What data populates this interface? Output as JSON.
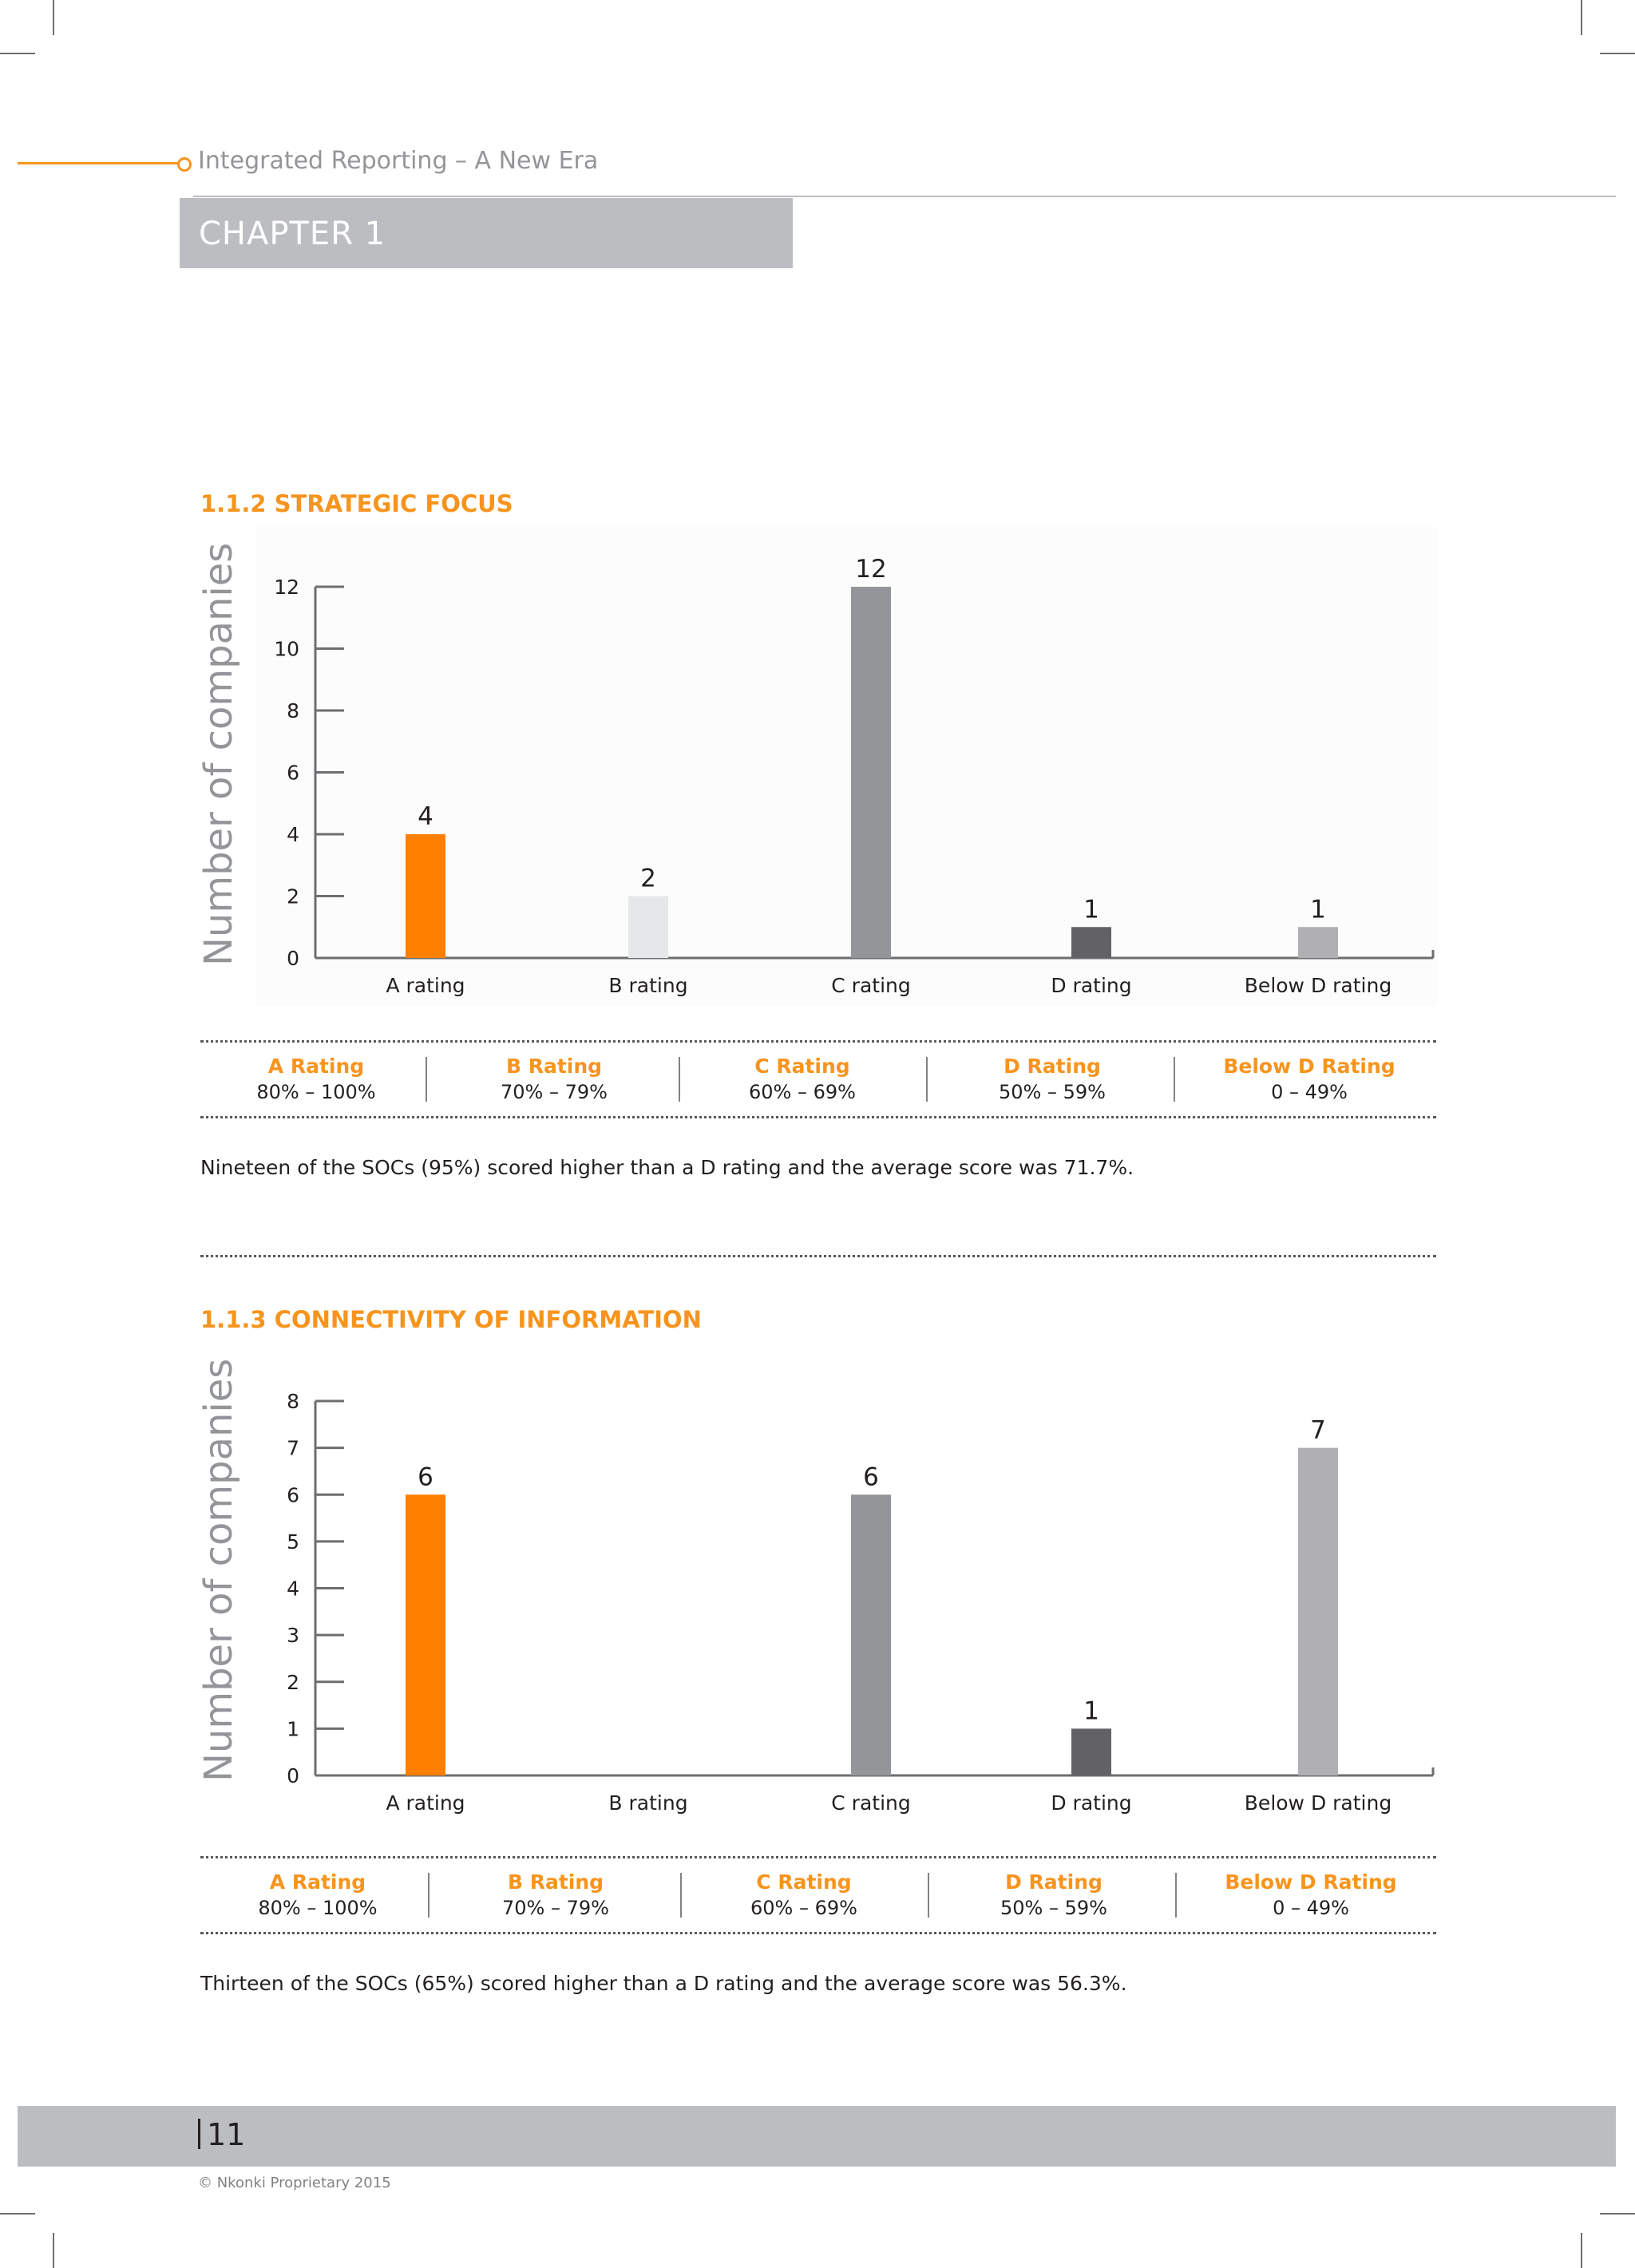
{
  "header": {
    "title": "Integrated Reporting – A New Era",
    "chapter": "CHAPTER 1"
  },
  "sections": [
    {
      "title": "1.1.2 STRATEGIC FOCUS",
      "ylabel": "Number of companies",
      "chart_data": {
        "type": "bar",
        "categories": [
          "A rating",
          "B rating",
          "C rating",
          "D rating",
          "Below D rating"
        ],
        "values": [
          4,
          2,
          12,
          1,
          1
        ],
        "data_labels": [
          "4",
          "2",
          "12",
          "1",
          "1"
        ],
        "yticks": [
          "0",
          "2",
          "4",
          "6",
          "8",
          "10",
          "12"
        ],
        "ylim": [
          0,
          12
        ],
        "ylabel": "Number of companies",
        "colors": [
          "#ff7f00",
          "#e6e7e8",
          "#939598",
          "#626164",
          "#b0b0b2"
        ]
      },
      "legend": [
        {
          "name": "A Rating",
          "range": "80% – 100%"
        },
        {
          "name": "B Rating",
          "range": "70% – 79%"
        },
        {
          "name": "C Rating",
          "range": "60% – 69%"
        },
        {
          "name": "D Rating",
          "range": "50% – 59%"
        },
        {
          "name": "Below D Rating",
          "range": "0 – 49%"
        }
      ],
      "text": "Nineteen of the SOCs (95%) scored higher than a D rating and the average score was 71.7%."
    },
    {
      "title": "1.1.3 CONNECTIVITY OF INFORMATION",
      "ylabel": "Number of companies",
      "chart_data": {
        "type": "bar",
        "categories": [
          "A rating",
          "B rating",
          "C rating",
          "D rating",
          "Below D rating"
        ],
        "values": [
          6,
          0,
          6,
          1,
          7
        ],
        "data_labels": [
          "6",
          "",
          "6",
          "1",
          "7"
        ],
        "yticks": [
          "0",
          "1",
          "2",
          "3",
          "4",
          "5",
          "6",
          "7",
          "8"
        ],
        "ylim": [
          0,
          8
        ],
        "ylabel": "Number of companies",
        "colors": [
          "#ff7f00",
          "#e6e7e8",
          "#939598",
          "#626164",
          "#b0b0b2"
        ]
      },
      "legend": [
        {
          "name": "A Rating",
          "range": "80% – 100%"
        },
        {
          "name": "B Rating",
          "range": "70% – 79%"
        },
        {
          "name": "C Rating",
          "range": "60% – 69%"
        },
        {
          "name": "D Rating",
          "range": "50% – 59%"
        },
        {
          "name": "Below D Rating",
          "range": "0 – 49%"
        }
      ],
      "text": "Thirteen of the SOCs (65%) scored higher than a D rating and the average score was 56.3%."
    }
  ],
  "footer": {
    "page": "11",
    "copyright": "© Nkonki Proprietary 2015"
  }
}
